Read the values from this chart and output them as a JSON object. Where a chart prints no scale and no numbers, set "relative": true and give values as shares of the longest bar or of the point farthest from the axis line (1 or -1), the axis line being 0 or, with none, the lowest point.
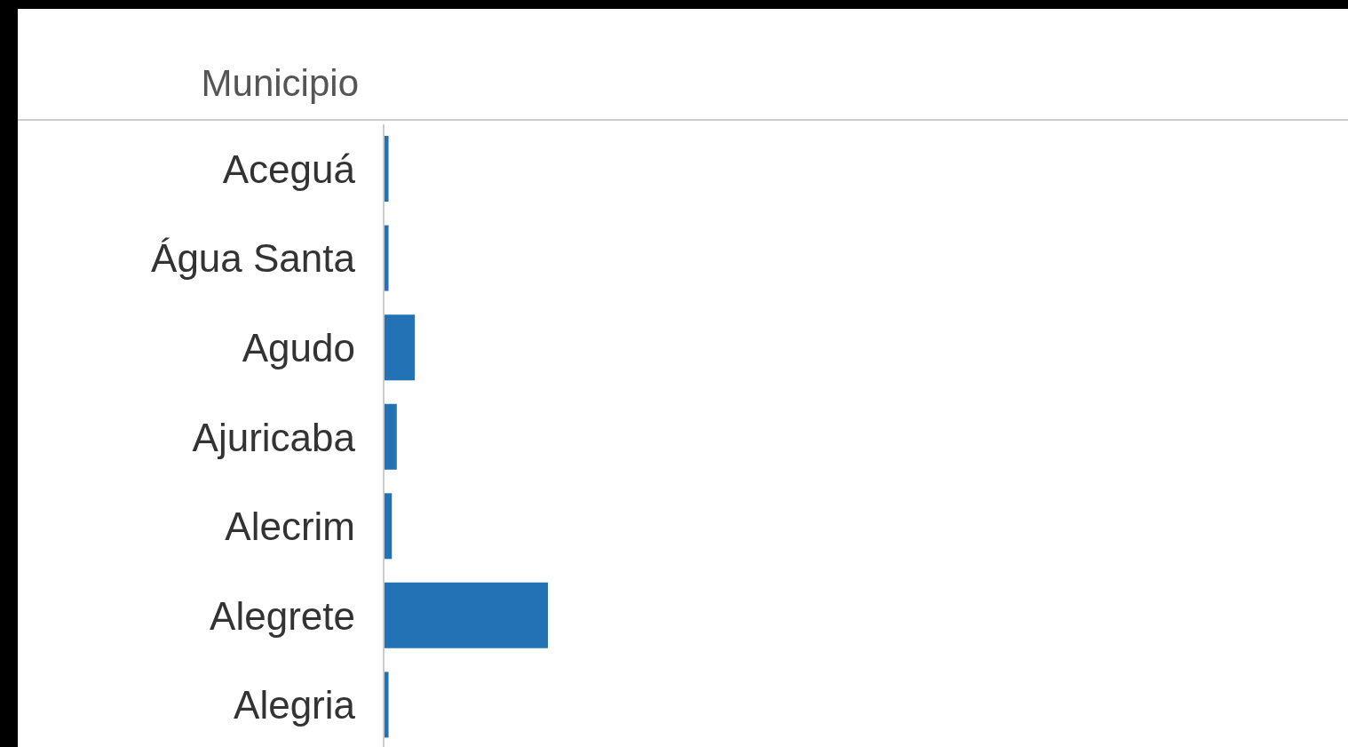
{
  "chart_data": {
    "type": "bar",
    "orientation": "horizontal",
    "relative": true,
    "ylabel": "Municipio",
    "color": "#2372b6",
    "categories": [
      "Aceguá",
      "Água Santa",
      "Agudo",
      "Ajuricaba",
      "Alecrim",
      "Alegrete",
      "Alegria"
    ],
    "values": [
      0.03,
      0.03,
      0.19,
      0.08,
      0.05,
      1,
      0.03
    ]
  }
}
